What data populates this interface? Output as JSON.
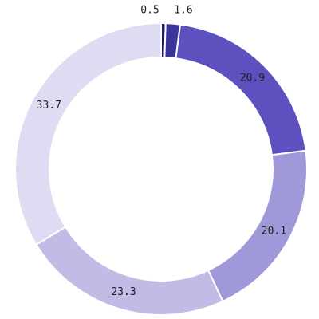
{
  "chart_data": {
    "type": "pie",
    "style": "donut",
    "title": "",
    "slices": [
      {
        "value": 0.5,
        "label": "0.5",
        "color": "#1c1968"
      },
      {
        "value": 1.6,
        "label": "1.6",
        "color": "#3b3499"
      },
      {
        "value": 20.9,
        "label": "20.9",
        "color": "#5d51bf"
      },
      {
        "value": 20.1,
        "label": "20.1",
        "color": "#9f99da"
      },
      {
        "value": 23.3,
        "label": "23.3",
        "color": "#c0bce6"
      },
      {
        "value": 33.7,
        "label": "33.7",
        "color": "#dedcf2"
      }
    ],
    "start_angle": "12 o'clock",
    "direction": "clockwise",
    "legend": "none"
  }
}
